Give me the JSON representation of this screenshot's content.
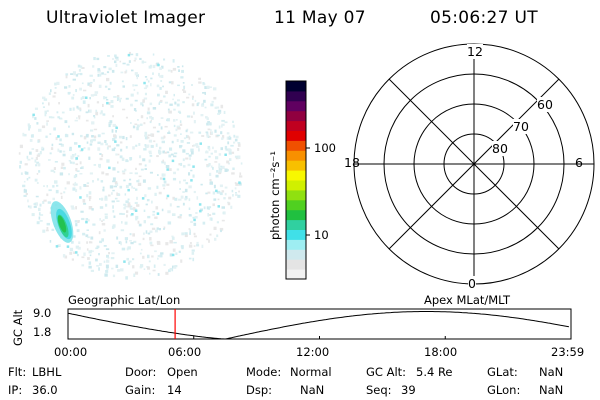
{
  "header": {
    "title": "Ultraviolet Imager",
    "date": "11 May 07",
    "time": "05:06:27 UT"
  },
  "colorbar": {
    "unit_label": "photon cm⁻²s⁻¹",
    "ticks": [
      "100",
      "10"
    ],
    "colors": [
      "#f2f2f2",
      "#e4e4e4",
      "#cfe9ee",
      "#9eeef2",
      "#40e0e8",
      "#30d0a0",
      "#20c040",
      "#50d020",
      "#90e010",
      "#d0f000",
      "#f8f800",
      "#f8c000",
      "#f89000",
      "#f05000",
      "#e00000",
      "#c00020",
      "#900040",
      "#600060",
      "#300050",
      "#000030"
    ]
  },
  "polar": {
    "mlt_labels": {
      "top": "12",
      "left": "18",
      "right": "6",
      "bottom": "0"
    },
    "lat_labels": [
      "60",
      "70",
      "80"
    ]
  },
  "timeline": {
    "axis_label": "GC Alt",
    "y_top": "9.0",
    "y_bottom": "1.8",
    "left_caption": "Geographic Lat/Lon",
    "right_caption": "Apex MLat/MLT",
    "x_ticks": [
      "00:00",
      "06:00",
      "12:00",
      "18:00",
      "23:59"
    ],
    "marker_hour": 5.11,
    "marker_color": "#ff0000"
  },
  "footer": {
    "row1": {
      "flt_label": "Flt:",
      "flt_value": "LBHL",
      "door_label": "Door:",
      "door_value": "Open",
      "mode_label": "Mode:",
      "mode_value": "Normal",
      "gcalt_label": "GC Alt:",
      "gcalt_value": "5.4 Re",
      "glat_label": "GLat:",
      "glat_value": "NaN"
    },
    "row2": {
      "ip_label": "IP:",
      "ip_value": "36.0",
      "gain_label": "Gain:",
      "gain_value": "14",
      "dsp_label": "Dsp:",
      "dsp_value": "NaN",
      "seq_label": "Seq:",
      "seq_value": "39",
      "glon_label": "GLon:",
      "glon_value": "NaN"
    }
  }
}
